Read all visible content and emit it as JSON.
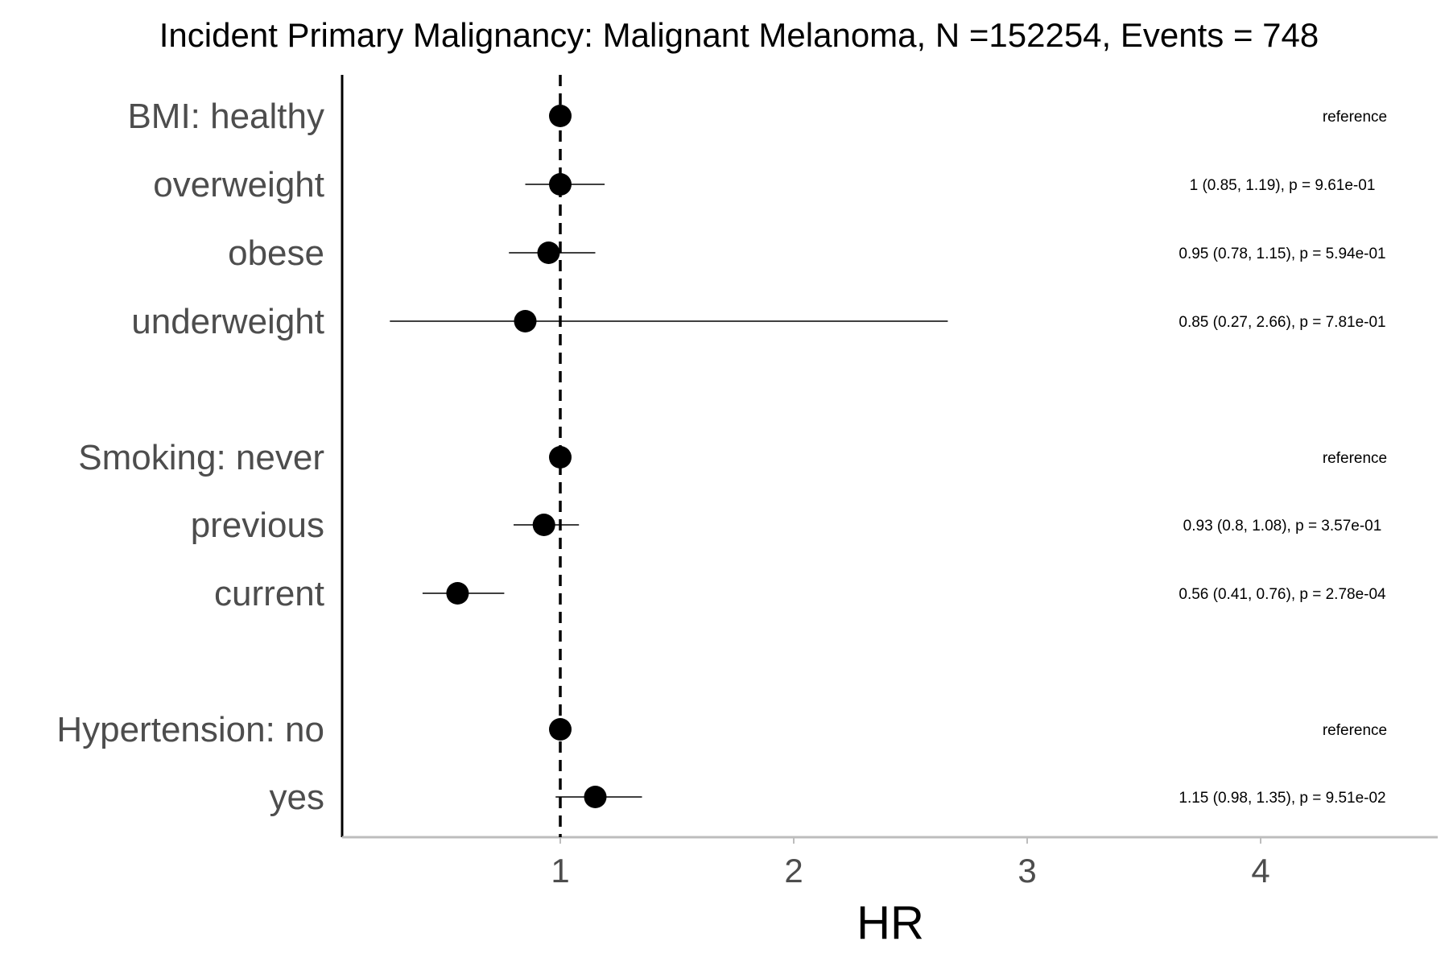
{
  "chart_data": {
    "type": "forest",
    "title": "Incident Primary Malignancy: Malignant Melanoma, N =152254, Events = 748",
    "xlabel": "HR",
    "xlim": [
      0.06,
      4.76
    ],
    "xticks": [
      1,
      2,
      3,
      4
    ],
    "reference_line": 1,
    "grid": false,
    "rows": [
      {
        "label": "BMI: healthy",
        "hr": 1,
        "lower": null,
        "upper": null,
        "annotation": "reference"
      },
      {
        "label": "overweight",
        "hr": 1,
        "lower": 0.85,
        "upper": 1.19,
        "annotation": "1 (0.85, 1.19), p = 9.61e-01"
      },
      {
        "label": "obese",
        "hr": 0.95,
        "lower": 0.78,
        "upper": 1.15,
        "annotation": "0.95 (0.78, 1.15), p = 5.94e-01"
      },
      {
        "label": "underweight",
        "hr": 0.85,
        "lower": 0.27,
        "upper": 2.66,
        "annotation": "0.85 (0.27, 2.66), p = 7.81e-01"
      },
      {
        "label": "Smoking: never",
        "hr": 1,
        "lower": null,
        "upper": null,
        "annotation": "reference"
      },
      {
        "label": "previous",
        "hr": 0.93,
        "lower": 0.8,
        "upper": 1.08,
        "annotation": "0.93 (0.8, 1.08), p = 3.57e-01"
      },
      {
        "label": "current",
        "hr": 0.56,
        "lower": 0.41,
        "upper": 0.76,
        "annotation": "0.56 (0.41, 0.76), p = 2.78e-04"
      },
      {
        "label": "Hypertension: no",
        "hr": 1,
        "lower": null,
        "upper": null,
        "annotation": "reference"
      },
      {
        "label": "yes",
        "hr": 1.15,
        "lower": 0.98,
        "upper": 1.35,
        "annotation": "1.15 (0.98, 1.35), p = 9.51e-02"
      }
    ]
  }
}
